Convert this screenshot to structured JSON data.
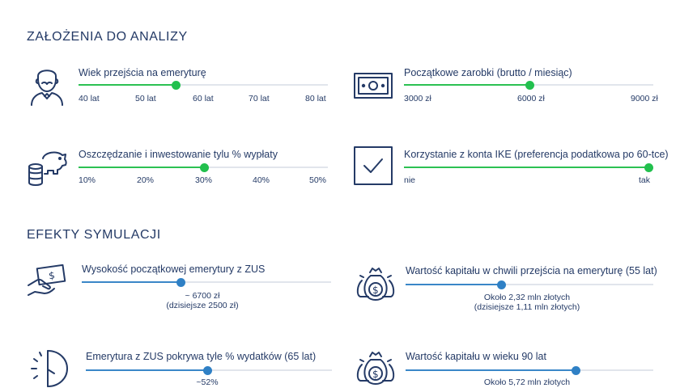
{
  "assumptions": {
    "title": "ZAŁOŻENIA DO ANALIZY",
    "retirement_age": {
      "label": "Wiek przejścia na emeryturę",
      "icon": "elderly-man-icon",
      "ticks": [
        "40 lat",
        "50 lat",
        "60 lat",
        "70 lat",
        "80 lat"
      ],
      "value_fraction": 0.39
    },
    "initial_salary": {
      "label": "Początkowe zarobki (brutto / miesiąc)",
      "icon": "banknote-icon",
      "ticks": [
        "3000 zł",
        "6000 zł",
        "9000 zł"
      ],
      "value_fraction": 0.5
    },
    "savings_rate": {
      "label": "Oszczędzanie i inwestowanie tylu % wypłaty",
      "icon": "piggy-bank-coins-icon",
      "ticks": [
        "10%",
        "20%",
        "30%",
        "40%",
        "50%"
      ],
      "value_fraction": 0.5
    },
    "ike_account": {
      "label": "Korzystanie z konta IKE (preferencja podatkowa po 60-tce)",
      "icon": "checkbox-checked-icon",
      "ticks": [
        "nie",
        "tak"
      ],
      "value_fraction": 1.0
    }
  },
  "results": {
    "title": "EFEKTY SYMULACJI",
    "zus_pension": {
      "label": "Wysokość początkowej emerytury z ZUS",
      "icon": "hand-with-cash-icon",
      "line1": "~ 6700 zł",
      "line2": "(dzisiejsze 2500 zł)",
      "value_fraction": 0.4
    },
    "capital_at_retirement": {
      "label": "Wartość kapitału w chwili przejścia na emeryturę (55 lat)",
      "icon": "money-bags-icon",
      "line1": "Około 2,32 mln złotych",
      "line2": "(dzisiejsze 1,11 mln złotych)",
      "value_fraction": 0.39
    },
    "zus_coverage": {
      "label": "Emerytura z ZUS pokrywa tyle % wydatków (65 lat)",
      "icon": "half-clock-icon",
      "line1": "~52%",
      "value_fraction": 0.49
    },
    "capital_at_90": {
      "label": "Wartość kapitału w wieku 90 lat",
      "icon": "money-bags-icon",
      "line1": "Około 5,72 mln złotych",
      "value_fraction": 0.68
    }
  },
  "colors": {
    "text": "#243a66",
    "green": "#22c04e",
    "blue": "#2f80c5",
    "track": "#e1e5ec"
  }
}
